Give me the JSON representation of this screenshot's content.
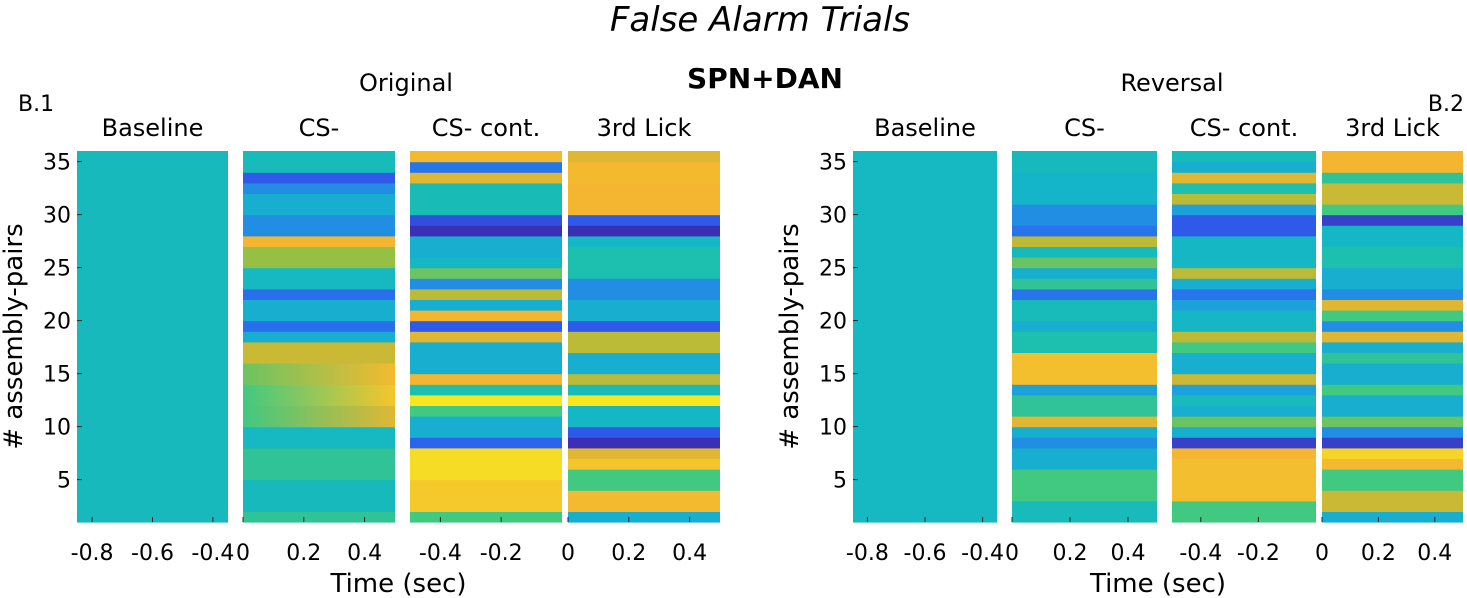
{
  "figure": {
    "title": "False Alarm Trials",
    "center_label": "SPN+DAN"
  },
  "colors": {
    "colormap": [
      "#3e26a8",
      "#2d5ff0",
      "#1e9ae0",
      "#14b6c7",
      "#1bbeb0",
      "#43c87e",
      "#a4be3a",
      "#f4b430",
      "#f5d02a",
      "#f9fa14"
    ],
    "divider": "#ffffff"
  },
  "chart_data": [
    {
      "type": "heatmap",
      "panel_label": "B.1",
      "condition_title": "Original",
      "ylabel": "# assembly-pairs",
      "xlabel": "Time (sec)",
      "yticks": [
        5,
        10,
        15,
        20,
        25,
        30,
        35
      ],
      "ylim": [
        1,
        36
      ],
      "segments": [
        {
          "title": "Baseline",
          "xlim": [
            -0.85,
            -0.35
          ],
          "xticks": [
            "-0.8",
            "-0.6",
            "-0.4"
          ],
          "xtick_values": [
            -0.8,
            -0.6,
            -0.4
          ]
        },
        {
          "title": "CS-",
          "xlim": [
            0,
            0.5
          ],
          "xticks": [
            "0",
            "0.2",
            "0.4"
          ],
          "xtick_values": [
            0,
            0.2,
            0.4
          ]
        },
        {
          "title": "CS- cont.",
          "xlim": [
            -0.5,
            0
          ],
          "xticks": [
            "-0.4",
            "-0.2"
          ],
          "xtick_values": [
            -0.4,
            -0.2
          ]
        },
        {
          "title": "3rd Lick",
          "xlim": [
            0,
            0.5
          ],
          "xticks": [
            "0",
            "0.2",
            "0.4"
          ],
          "xtick_values": [
            0,
            0.2,
            0.4
          ]
        }
      ],
      "rows": {
        "baseline": [
          {
            "lo": 1,
            "hi": 36,
            "v": 0.38
          }
        ],
        "cs": [
          {
            "lo": 1,
            "hi": 2,
            "v": 0.5
          },
          {
            "lo": 2,
            "hi": 5,
            "v": 0.38
          },
          {
            "lo": 5,
            "hi": 8,
            "v": 0.5
          },
          {
            "lo": 8,
            "hi": 10,
            "v": 0.36
          },
          {
            "lo": 10,
            "hi": 12,
            "v": 0.55,
            "ramp": 0.75
          },
          {
            "lo": 12,
            "hi": 14,
            "v": 0.55,
            "ramp": 0.85
          },
          {
            "lo": 14,
            "hi": 16,
            "v": 0.6,
            "ramp": 0.8
          },
          {
            "lo": 16,
            "hi": 18,
            "v": 0.72
          },
          {
            "lo": 18,
            "hi": 19,
            "v": 0.3
          },
          {
            "lo": 19,
            "hi": 20,
            "v": 0.14
          },
          {
            "lo": 20,
            "hi": 22,
            "v": 0.3
          },
          {
            "lo": 22,
            "hi": 23,
            "v": 0.14
          },
          {
            "lo": 23,
            "hi": 25,
            "v": 0.36
          },
          {
            "lo": 25,
            "hi": 27,
            "v": 0.65
          },
          {
            "lo": 27,
            "hi": 28,
            "v": 0.78
          },
          {
            "lo": 28,
            "hi": 30,
            "v": 0.2
          },
          {
            "lo": 30,
            "hi": 32,
            "v": 0.3
          },
          {
            "lo": 32,
            "hi": 33,
            "v": 0.2
          },
          {
            "lo": 33,
            "hi": 34,
            "v": 0.1
          },
          {
            "lo": 34,
            "hi": 36,
            "v": 0.4
          }
        ],
        "cont": [
          {
            "lo": 1,
            "hi": 2,
            "v": 0.55
          },
          {
            "lo": 2,
            "hi": 5,
            "v": 0.86
          },
          {
            "lo": 5,
            "hi": 8,
            "v": 0.92
          },
          {
            "lo": 8,
            "hi": 9,
            "v": 0.12
          },
          {
            "lo": 9,
            "hi": 11,
            "v": 0.3
          },
          {
            "lo": 11,
            "hi": 12,
            "v": 0.55
          },
          {
            "lo": 12,
            "hi": 13,
            "v": 0.95
          },
          {
            "lo": 13,
            "hi": 14,
            "v": 0.45
          },
          {
            "lo": 14,
            "hi": 15,
            "v": 0.78
          },
          {
            "lo": 15,
            "hi": 18,
            "v": 0.3
          },
          {
            "lo": 18,
            "hi": 19,
            "v": 0.75
          },
          {
            "lo": 19,
            "hi": 20,
            "v": 0.1
          },
          {
            "lo": 20,
            "hi": 21,
            "v": 0.78
          },
          {
            "lo": 21,
            "hi": 22,
            "v": 0.3
          },
          {
            "lo": 22,
            "hi": 23,
            "v": 0.7
          },
          {
            "lo": 23,
            "hi": 24,
            "v": 0.2
          },
          {
            "lo": 24,
            "hi": 25,
            "v": 0.6
          },
          {
            "lo": 25,
            "hi": 26,
            "v": 0.35
          },
          {
            "lo": 26,
            "hi": 28,
            "v": 0.3
          },
          {
            "lo": 28,
            "hi": 29,
            "v": 0.02
          },
          {
            "lo": 29,
            "hi": 30,
            "v": 0.08
          },
          {
            "lo": 30,
            "hi": 33,
            "v": 0.42
          },
          {
            "lo": 33,
            "hi": 34,
            "v": 0.75
          },
          {
            "lo": 34,
            "hi": 35,
            "v": 0.15
          },
          {
            "lo": 35,
            "hi": 36,
            "v": 0.8
          }
        ],
        "lick": [
          {
            "lo": 1,
            "hi": 2,
            "v": 0.3
          },
          {
            "lo": 2,
            "hi": 4,
            "v": 0.8
          },
          {
            "lo": 4,
            "hi": 6,
            "v": 0.55
          },
          {
            "lo": 6,
            "hi": 7,
            "v": 0.85
          },
          {
            "lo": 7,
            "hi": 8,
            "v": 0.75
          },
          {
            "lo": 8,
            "hi": 9,
            "v": 0.02
          },
          {
            "lo": 9,
            "hi": 10,
            "v": 0.1
          },
          {
            "lo": 10,
            "hi": 12,
            "v": 0.35
          },
          {
            "lo": 12,
            "hi": 13,
            "v": 0.95
          },
          {
            "lo": 13,
            "hi": 14,
            "v": 0.4
          },
          {
            "lo": 14,
            "hi": 15,
            "v": 0.7
          },
          {
            "lo": 15,
            "hi": 17,
            "v": 0.3
          },
          {
            "lo": 17,
            "hi": 19,
            "v": 0.7
          },
          {
            "lo": 19,
            "hi": 20,
            "v": 0.1
          },
          {
            "lo": 20,
            "hi": 22,
            "v": 0.3
          },
          {
            "lo": 22,
            "hi": 24,
            "v": 0.2
          },
          {
            "lo": 24,
            "hi": 27,
            "v": 0.45
          },
          {
            "lo": 27,
            "hi": 28,
            "v": 0.35
          },
          {
            "lo": 28,
            "hi": 29,
            "v": 0.02
          },
          {
            "lo": 29,
            "hi": 30,
            "v": 0.1
          },
          {
            "lo": 30,
            "hi": 33,
            "v": 0.78
          },
          {
            "lo": 33,
            "hi": 35,
            "v": 0.8
          },
          {
            "lo": 35,
            "hi": 36,
            "v": 0.75
          }
        ]
      }
    },
    {
      "type": "heatmap",
      "panel_label": "B.2",
      "condition_title": "Reversal",
      "ylabel": "# assembly-pairs",
      "xlabel": "Time (sec)",
      "yticks": [
        5,
        10,
        15,
        20,
        25,
        30,
        35
      ],
      "ylim": [
        1,
        36
      ],
      "segments": [
        {
          "title": "Baseline",
          "xlim": [
            -0.85,
            -0.35
          ],
          "xticks": [
            "-0.8",
            "-0.6",
            "-0.4"
          ],
          "xtick_values": [
            -0.8,
            -0.6,
            -0.4
          ]
        },
        {
          "title": "CS-",
          "xlim": [
            0,
            0.5
          ],
          "xticks": [
            "0",
            "0.2",
            "0.4"
          ],
          "xtick_values": [
            0,
            0.2,
            0.4
          ]
        },
        {
          "title": "CS- cont.",
          "xlim": [
            -0.5,
            0
          ],
          "xticks": [
            "-0.4",
            "-0.2"
          ],
          "xtick_values": [
            -0.4,
            -0.2
          ]
        },
        {
          "title": "3rd Lick",
          "xlim": [
            0,
            0.5
          ],
          "xticks": [
            "0",
            "0.2",
            "0.4"
          ],
          "xtick_values": [
            0,
            0.2,
            0.4
          ]
        }
      ],
      "rows": {
        "baseline": [
          {
            "lo": 1,
            "hi": 36,
            "v": 0.36
          }
        ],
        "cs": [
          {
            "lo": 1,
            "hi": 3,
            "v": 0.4
          },
          {
            "lo": 3,
            "hi": 6,
            "v": 0.55
          },
          {
            "lo": 6,
            "hi": 8,
            "v": 0.3
          },
          {
            "lo": 8,
            "hi": 9,
            "v": 0.2
          },
          {
            "lo": 9,
            "hi": 10,
            "v": 0.3
          },
          {
            "lo": 10,
            "hi": 11,
            "v": 0.75
          },
          {
            "lo": 11,
            "hi": 13,
            "v": 0.5
          },
          {
            "lo": 13,
            "hi": 14,
            "v": 0.25
          },
          {
            "lo": 14,
            "hi": 17,
            "v": 0.82
          },
          {
            "lo": 17,
            "hi": 19,
            "v": 0.45
          },
          {
            "lo": 19,
            "hi": 20,
            "v": 0.3
          },
          {
            "lo": 20,
            "hi": 22,
            "v": 0.4
          },
          {
            "lo": 22,
            "hi": 23,
            "v": 0.15
          },
          {
            "lo": 23,
            "hi": 24,
            "v": 0.5
          },
          {
            "lo": 24,
            "hi": 25,
            "v": 0.3
          },
          {
            "lo": 25,
            "hi": 26,
            "v": 0.6
          },
          {
            "lo": 26,
            "hi": 27,
            "v": 0.38
          },
          {
            "lo": 27,
            "hi": 28,
            "v": 0.7
          },
          {
            "lo": 28,
            "hi": 29,
            "v": 0.15
          },
          {
            "lo": 29,
            "hi": 31,
            "v": 0.2
          },
          {
            "lo": 31,
            "hi": 34,
            "v": 0.33
          },
          {
            "lo": 34,
            "hi": 36,
            "v": 0.38
          }
        ],
        "cont": [
          {
            "lo": 1,
            "hi": 3,
            "v": 0.55
          },
          {
            "lo": 3,
            "hi": 7,
            "v": 0.82
          },
          {
            "lo": 7,
            "hi": 8,
            "v": 0.78
          },
          {
            "lo": 8,
            "hi": 9,
            "v": 0.05
          },
          {
            "lo": 9,
            "hi": 10,
            "v": 0.3
          },
          {
            "lo": 10,
            "hi": 11,
            "v": 0.6
          },
          {
            "lo": 11,
            "hi": 12,
            "v": 0.3
          },
          {
            "lo": 12,
            "hi": 13,
            "v": 0.4
          },
          {
            "lo": 13,
            "hi": 14,
            "v": 0.25
          },
          {
            "lo": 14,
            "hi": 15,
            "v": 0.72
          },
          {
            "lo": 15,
            "hi": 17,
            "v": 0.3
          },
          {
            "lo": 17,
            "hi": 18,
            "v": 0.55
          },
          {
            "lo": 18,
            "hi": 19,
            "v": 0.7
          },
          {
            "lo": 19,
            "hi": 21,
            "v": 0.35
          },
          {
            "lo": 21,
            "hi": 22,
            "v": 0.25
          },
          {
            "lo": 22,
            "hi": 23,
            "v": 0.15
          },
          {
            "lo": 23,
            "hi": 24,
            "v": 0.3
          },
          {
            "lo": 24,
            "hi": 25,
            "v": 0.7
          },
          {
            "lo": 25,
            "hi": 28,
            "v": 0.35
          },
          {
            "lo": 28,
            "hi": 30,
            "v": 0.1
          },
          {
            "lo": 30,
            "hi": 31,
            "v": 0.25
          },
          {
            "lo": 31,
            "hi": 32,
            "v": 0.7
          },
          {
            "lo": 32,
            "hi": 33,
            "v": 0.45
          },
          {
            "lo": 33,
            "hi": 34,
            "v": 0.75
          },
          {
            "lo": 34,
            "hi": 35,
            "v": 0.3
          },
          {
            "lo": 35,
            "hi": 36,
            "v": 0.4
          }
        ],
        "lick": [
          {
            "lo": 1,
            "hi": 2,
            "v": 0.3
          },
          {
            "lo": 2,
            "hi": 4,
            "v": 0.72
          },
          {
            "lo": 4,
            "hi": 6,
            "v": 0.55
          },
          {
            "lo": 6,
            "hi": 7,
            "v": 0.8
          },
          {
            "lo": 7,
            "hi": 8,
            "v": 0.9
          },
          {
            "lo": 8,
            "hi": 9,
            "v": 0.05
          },
          {
            "lo": 9,
            "hi": 10,
            "v": 0.2
          },
          {
            "lo": 10,
            "hi": 11,
            "v": 0.6
          },
          {
            "lo": 11,
            "hi": 13,
            "v": 0.3
          },
          {
            "lo": 13,
            "hi": 14,
            "v": 0.55
          },
          {
            "lo": 14,
            "hi": 16,
            "v": 0.3
          },
          {
            "lo": 16,
            "hi": 17,
            "v": 0.5
          },
          {
            "lo": 17,
            "hi": 18,
            "v": 0.3
          },
          {
            "lo": 18,
            "hi": 19,
            "v": 0.75
          },
          {
            "lo": 19,
            "hi": 20,
            "v": 0.2
          },
          {
            "lo": 20,
            "hi": 21,
            "v": 0.55
          },
          {
            "lo": 21,
            "hi": 22,
            "v": 0.75
          },
          {
            "lo": 22,
            "hi": 23,
            "v": 0.2
          },
          {
            "lo": 23,
            "hi": 25,
            "v": 0.3
          },
          {
            "lo": 25,
            "hi": 27,
            "v": 0.45
          },
          {
            "lo": 27,
            "hi": 29,
            "v": 0.35
          },
          {
            "lo": 29,
            "hi": 30,
            "v": 0.05
          },
          {
            "lo": 30,
            "hi": 31,
            "v": 0.55
          },
          {
            "lo": 31,
            "hi": 33,
            "v": 0.72
          },
          {
            "lo": 33,
            "hi": 34,
            "v": 0.5
          },
          {
            "lo": 34,
            "hi": 36,
            "v": 0.78
          }
        ]
      }
    }
  ]
}
